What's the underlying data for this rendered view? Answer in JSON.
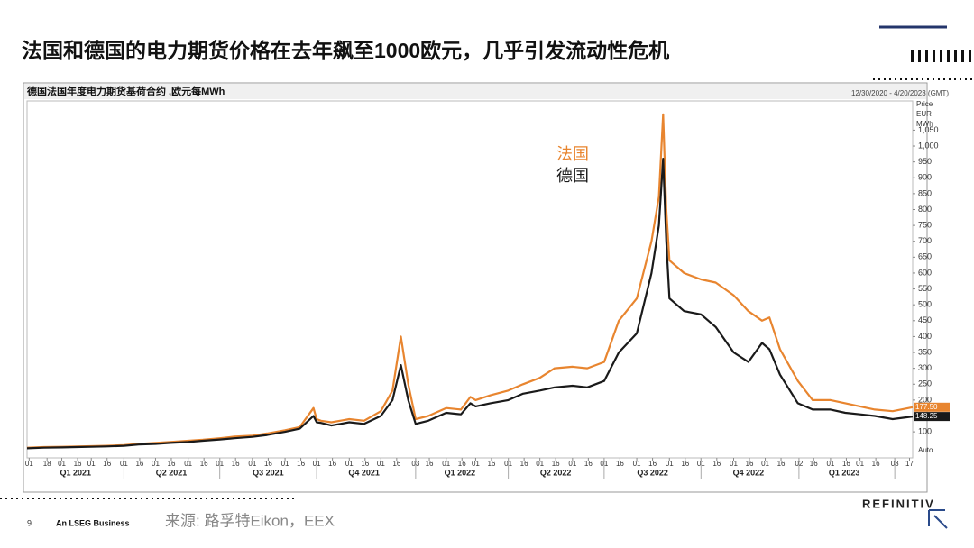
{
  "slide": {
    "title": "法国和德国的电力期货价格在去年飙至1000欧元，几乎引发流动性危机",
    "page_number": "9",
    "company_tag": "An LSEG Business",
    "source": "来源: 路孚特Eikon，EEX",
    "brand": "REFINITIV"
  },
  "chart_data": {
    "type": "line",
    "title": "德国法国年度电力期货基荷合约 ,欧元每MWh",
    "date_range": "12/30/2020 - 4/20/2023 (GMT)",
    "y_label": [
      "Price",
      "EUR",
      "MWh"
    ],
    "scale_mode": "Auto",
    "x": [
      "2020-12-30",
      "2021-01-15",
      "2021-02-01",
      "2021-02-15",
      "2021-03-01",
      "2021-03-15",
      "2021-04-01",
      "2021-04-15",
      "2021-05-01",
      "2021-05-15",
      "2021-06-01",
      "2021-06-15",
      "2021-07-01",
      "2021-07-15",
      "2021-08-01",
      "2021-08-15",
      "2021-09-01",
      "2021-09-15",
      "2021-09-28",
      "2021-10-01",
      "2021-10-05",
      "2021-10-15",
      "2021-11-01",
      "2021-11-15",
      "2021-12-01",
      "2021-12-12",
      "2021-12-20",
      "2021-12-27",
      "2022-01-03",
      "2022-01-15",
      "2022-02-01",
      "2022-02-15",
      "2022-02-24",
      "2022-03-01",
      "2022-03-15",
      "2022-04-01",
      "2022-04-15",
      "2022-05-01",
      "2022-05-15",
      "2022-06-01",
      "2022-06-15",
      "2022-07-01",
      "2022-07-15",
      "2022-08-01",
      "2022-08-15",
      "2022-08-22",
      "2022-08-26",
      "2022-08-29",
      "2022-09-01",
      "2022-09-15",
      "2022-10-01",
      "2022-10-15",
      "2022-11-01",
      "2022-11-15",
      "2022-11-28",
      "2022-12-05",
      "2022-12-15",
      "2023-01-01",
      "2023-01-15",
      "2023-02-01",
      "2023-02-15",
      "2023-03-01",
      "2023-03-15",
      "2023-04-01",
      "2023-04-20"
    ],
    "series": [
      {
        "name": "法国",
        "color": "#e8852f",
        "last_label": "177.50",
        "values": [
          50,
          52,
          53,
          54,
          55,
          56,
          58,
          62,
          65,
          68,
          72,
          75,
          80,
          85,
          88,
          95,
          105,
          115,
          175,
          140,
          135,
          130,
          140,
          135,
          165,
          230,
          400,
          250,
          140,
          150,
          175,
          170,
          210,
          200,
          215,
          230,
          250,
          270,
          300,
          305,
          300,
          320,
          450,
          520,
          700,
          840,
          1100,
          800,
          640,
          600,
          580,
          570,
          530,
          480,
          450,
          460,
          360,
          260,
          200,
          200,
          190,
          180,
          170,
          165,
          177.5
        ]
      },
      {
        "name": "德国",
        "color": "#1a1a1a",
        "last_label": "148.25",
        "values": [
          48,
          50,
          51,
          52,
          53,
          54,
          56,
          60,
          62,
          65,
          68,
          72,
          76,
          80,
          84,
          90,
          100,
          110,
          150,
          130,
          128,
          120,
          130,
          125,
          150,
          200,
          310,
          200,
          125,
          135,
          160,
          155,
          190,
          180,
          190,
          200,
          220,
          230,
          240,
          245,
          240,
          260,
          350,
          410,
          600,
          750,
          960,
          700,
          520,
          480,
          470,
          430,
          350,
          320,
          380,
          360,
          280,
          190,
          170,
          170,
          160,
          155,
          150,
          140,
          148.25
        ]
      }
    ],
    "xlim": [
      "2020-12-30",
      "2023-04-20"
    ],
    "ylim": [
      18,
      1142
    ],
    "yticks": [
      100,
      150,
      200,
      250,
      300,
      350,
      400,
      450,
      500,
      550,
      600,
      650,
      700,
      750,
      800,
      850,
      900,
      950,
      {
        "value": 1000,
        "label": "1,000"
      },
      {
        "value": 1050,
        "label": "1,050"
      }
    ],
    "xticks": [
      {
        "value": "2021-01-01",
        "label": "01"
      },
      {
        "value": "2021-01-18",
        "label": "18"
      },
      {
        "value": "2021-02-01",
        "label": "01"
      },
      {
        "value": "2021-02-16",
        "label": "16"
      },
      {
        "value": "2021-03-01",
        "label": "01"
      },
      {
        "value": "2021-03-16",
        "label": "16"
      },
      {
        "value": "2021-04-01",
        "label": "01"
      },
      {
        "value": "2021-04-16",
        "label": "16"
      },
      {
        "value": "2021-05-01",
        "label": "01"
      },
      {
        "value": "2021-05-16",
        "label": "16"
      },
      {
        "value": "2021-06-01",
        "label": "01"
      },
      {
        "value": "2021-06-16",
        "label": "16"
      },
      {
        "value": "2021-07-01",
        "label": "01"
      },
      {
        "value": "2021-07-16",
        "label": "16"
      },
      {
        "value": "2021-08-01",
        "label": "01"
      },
      {
        "value": "2021-08-16",
        "label": "16"
      },
      {
        "value": "2021-09-01",
        "label": "01"
      },
      {
        "value": "2021-09-16",
        "label": "16"
      },
      {
        "value": "2021-10-01",
        "label": "01"
      },
      {
        "value": "2021-10-16",
        "label": "16"
      },
      {
        "value": "2021-11-01",
        "label": "01"
      },
      {
        "value": "2021-11-16",
        "label": "16"
      },
      {
        "value": "2021-12-01",
        "label": "01"
      },
      {
        "value": "2021-12-16",
        "label": "16"
      },
      {
        "value": "2022-01-03",
        "label": "03"
      },
      {
        "value": "2022-01-16",
        "label": "16"
      },
      {
        "value": "2022-02-01",
        "label": "01"
      },
      {
        "value": "2022-02-16",
        "label": "16"
      },
      {
        "value": "2022-03-01",
        "label": "01"
      },
      {
        "value": "2022-03-16",
        "label": "16"
      },
      {
        "value": "2022-04-01",
        "label": "01"
      },
      {
        "value": "2022-04-16",
        "label": "16"
      },
      {
        "value": "2022-05-01",
        "label": "01"
      },
      {
        "value": "2022-05-16",
        "label": "16"
      },
      {
        "value": "2022-06-01",
        "label": "01"
      },
      {
        "value": "2022-06-16",
        "label": "16"
      },
      {
        "value": "2022-07-01",
        "label": "01"
      },
      {
        "value": "2022-07-16",
        "label": "16"
      },
      {
        "value": "2022-08-01",
        "label": "01"
      },
      {
        "value": "2022-08-16",
        "label": "16"
      },
      {
        "value": "2022-09-01",
        "label": "01"
      },
      {
        "value": "2022-09-16",
        "label": "16"
      },
      {
        "value": "2022-10-01",
        "label": "01"
      },
      {
        "value": "2022-10-16",
        "label": "16"
      },
      {
        "value": "2022-11-01",
        "label": "01"
      },
      {
        "value": "2022-11-16",
        "label": "16"
      },
      {
        "value": "2022-12-01",
        "label": "01"
      },
      {
        "value": "2022-12-16",
        "label": "16"
      },
      {
        "value": "2023-01-02",
        "label": "02"
      },
      {
        "value": "2023-01-16",
        "label": "16"
      },
      {
        "value": "2023-02-01",
        "label": "01"
      },
      {
        "value": "2023-02-16",
        "label": "16"
      },
      {
        "value": "2023-03-01",
        "label": "01"
      },
      {
        "value": "2023-03-16",
        "label": "16"
      },
      {
        "value": "2023-04-03",
        "label": "03"
      },
      {
        "value": "2023-04-17",
        "label": "17"
      }
    ],
    "xgroups": [
      {
        "value": "2021-02-14",
        "label": "Q1 2021"
      },
      {
        "value": "2021-05-16",
        "label": "Q2 2021"
      },
      {
        "value": "2021-08-16",
        "label": "Q3 2021"
      },
      {
        "value": "2021-11-15",
        "label": "Q4 2021"
      },
      {
        "value": "2022-02-14",
        "label": "Q1 2022"
      },
      {
        "value": "2022-05-16",
        "label": "Q2 2022"
      },
      {
        "value": "2022-08-16",
        "label": "Q3 2022"
      },
      {
        "value": "2022-11-15",
        "label": "Q4 2022"
      },
      {
        "value": "2023-02-14",
        "label": "Q1 2023"
      }
    ],
    "grid": false
  }
}
